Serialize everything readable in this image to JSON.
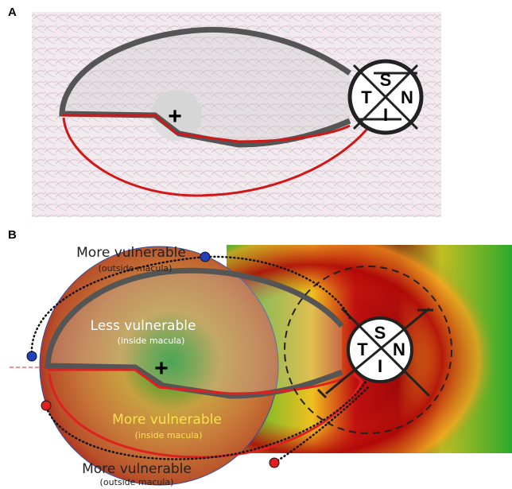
{
  "panels": [
    {
      "label": "A",
      "disc": {
        "s": "S",
        "t": "T",
        "n": "N",
        "i": "I"
      },
      "fovea": "+"
    },
    {
      "label": "B",
      "disc": {
        "s": "S",
        "t": "T",
        "n": "N",
        "i": "I"
      },
      "fovea": "+",
      "annotations": [
        {
          "title": "More vulnerable",
          "note": "(outside macula)"
        },
        {
          "title": "Less vulnerable",
          "note": "(inside macula)"
        },
        {
          "title": "More vulnerable",
          "note": "(inside macula)"
        },
        {
          "title": "More vulnerable",
          "note": "(outside macula)"
        }
      ]
    }
  ]
}
